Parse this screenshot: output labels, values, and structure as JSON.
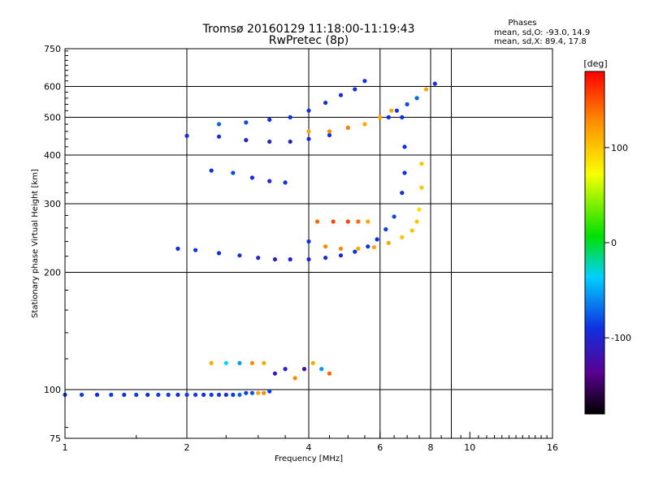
{
  "chart_data": {
    "type": "scatter",
    "title": "Tromsø 20160129 11:18:00-11:19:43",
    "subtitle": "RwPretec (8p)",
    "xlabel": "Frequency [MHz]",
    "ylabel": "Stationary phase Virtual Height [km]",
    "x_scale": "log",
    "y_scale": "log",
    "xlim": [
      1,
      16
    ],
    "ylim": [
      75,
      750
    ],
    "x_ticks": [
      1,
      2,
      4,
      6,
      8,
      10,
      16
    ],
    "y_ticks": [
      75,
      100,
      200,
      300,
      400,
      500,
      600,
      750
    ],
    "x_major_grid": [
      2,
      4,
      6,
      8,
      9
    ],
    "y_major_grid": [
      100,
      200,
      300,
      400,
      500,
      600
    ],
    "grid": true,
    "phases_box": {
      "heading": "Phases",
      "line1": "mean, sd,O: -93.0, 14.9",
      "line2": "mean, sd,X: 89.4, 17.8"
    },
    "colorbar": {
      "label": "[deg]",
      "range": [
        -180,
        180
      ],
      "ticks": [
        100,
        0,
        -100
      ]
    },
    "series": [
      {
        "values": [
          [
            1.0,
            97,
            -95
          ],
          [
            1.1,
            97,
            -95
          ],
          [
            1.2,
            97,
            -100
          ],
          [
            1.3,
            97,
            -95
          ],
          [
            1.4,
            97,
            -98
          ],
          [
            1.5,
            97,
            -95
          ],
          [
            1.6,
            97,
            -100
          ],
          [
            1.7,
            97,
            -95
          ],
          [
            1.8,
            97,
            -95
          ],
          [
            1.9,
            97,
            -100
          ],
          [
            2.0,
            97,
            -95
          ],
          [
            2.1,
            97,
            -95
          ],
          [
            2.2,
            97,
            -100
          ],
          [
            2.3,
            97,
            -95
          ],
          [
            2.4,
            97,
            -95
          ],
          [
            2.5,
            97,
            -100
          ],
          [
            2.6,
            97,
            -95
          ],
          [
            2.7,
            97,
            -80
          ],
          [
            2.8,
            98,
            -95
          ],
          [
            2.9,
            98,
            -90
          ],
          [
            3.0,
            98,
            130
          ],
          [
            3.1,
            98,
            140
          ],
          [
            3.2,
            99,
            -95
          ]
        ]
      },
      {
        "values": [
          [
            2.3,
            117,
            130
          ],
          [
            2.5,
            117,
            -40
          ],
          [
            2.7,
            117,
            -60
          ],
          [
            2.9,
            117,
            140
          ],
          [
            3.1,
            117,
            130
          ],
          [
            3.3,
            110,
            -120
          ],
          [
            3.5,
            113,
            -110
          ],
          [
            3.7,
            107,
            140
          ],
          [
            3.9,
            113,
            -130
          ],
          [
            4.1,
            117,
            130
          ],
          [
            4.3,
            113,
            -60
          ],
          [
            4.5,
            110,
            150
          ]
        ]
      },
      {
        "values": [
          [
            1.9,
            230,
            -100
          ],
          [
            2.1,
            228,
            -100
          ],
          [
            2.4,
            224,
            -100
          ],
          [
            2.7,
            221,
            -100
          ],
          [
            3.0,
            218,
            -110
          ],
          [
            3.3,
            216,
            -110
          ],
          [
            3.6,
            216,
            -110
          ],
          [
            4.0,
            216,
            -110
          ],
          [
            4.4,
            218,
            -105
          ],
          [
            4.8,
            221,
            -105
          ],
          [
            5.2,
            226,
            -100
          ],
          [
            5.6,
            233,
            -100
          ],
          [
            5.9,
            243,
            -100
          ],
          [
            6.2,
            258,
            -95
          ],
          [
            6.5,
            278,
            -90
          ]
        ]
      },
      {
        "values": [
          [
            4.0,
            240,
            -100
          ],
          [
            4.4,
            233,
            140
          ],
          [
            4.8,
            230,
            140
          ],
          [
            5.3,
            230,
            130
          ],
          [
            5.8,
            232,
            130
          ],
          [
            6.3,
            238,
            130
          ],
          [
            6.8,
            246,
            120
          ],
          [
            7.2,
            256,
            120
          ],
          [
            7.4,
            270,
            120
          ],
          [
            7.5,
            290,
            110
          ],
          [
            7.6,
            330,
            120
          ],
          [
            7.6,
            380,
            120
          ]
        ]
      },
      {
        "values": [
          [
            4.2,
            270,
            150
          ],
          [
            4.6,
            270,
            160
          ],
          [
            5.0,
            270,
            160
          ],
          [
            5.3,
            270,
            150
          ],
          [
            5.6,
            270,
            130
          ]
        ]
      },
      {
        "values": [
          [
            2.0,
            448,
            -100
          ],
          [
            2.4,
            446,
            -100
          ],
          [
            2.8,
            437,
            -110
          ],
          [
            3.2,
            433,
            -110
          ],
          [
            3.6,
            433,
            -110
          ],
          [
            4.0,
            440,
            -110
          ],
          [
            4.5,
            450,
            -100
          ],
          [
            5.0,
            470,
            -100
          ]
        ]
      },
      {
        "values": [
          [
            2.4,
            480,
            -80
          ],
          [
            2.8,
            485,
            -90
          ],
          [
            3.2,
            493,
            -100
          ],
          [
            3.6,
            500,
            -100
          ],
          [
            4.0,
            520,
            -100
          ],
          [
            4.4,
            545,
            -100
          ],
          [
            4.8,
            570,
            -100
          ],
          [
            5.2,
            590,
            -100
          ],
          [
            5.5,
            620,
            -100
          ]
        ]
      },
      {
        "values": [
          [
            4.0,
            460,
            130
          ],
          [
            4.5,
            460,
            140
          ],
          [
            5.0,
            470,
            140
          ],
          [
            5.5,
            480,
            130
          ],
          [
            6.0,
            500,
            130
          ],
          [
            6.4,
            520,
            130
          ]
        ]
      },
      {
        "values": [
          [
            6.3,
            500,
            -100
          ],
          [
            6.6,
            520,
            -100
          ],
          [
            7.0,
            540,
            -90
          ],
          [
            7.4,
            560,
            -80
          ],
          [
            7.8,
            590,
            130
          ],
          [
            8.2,
            610,
            -100
          ]
        ]
      },
      {
        "values": [
          [
            6.8,
            500,
            -100
          ],
          [
            6.9,
            420,
            -100
          ],
          [
            6.9,
            360,
            -100
          ],
          [
            6.8,
            320,
            -100
          ]
        ]
      },
      {
        "values": [
          [
            2.3,
            365,
            -100
          ],
          [
            2.6,
            360,
            -90
          ],
          [
            2.9,
            350,
            -100
          ],
          [
            3.2,
            343,
            -110
          ],
          [
            3.5,
            340,
            -100
          ]
        ]
      }
    ]
  }
}
